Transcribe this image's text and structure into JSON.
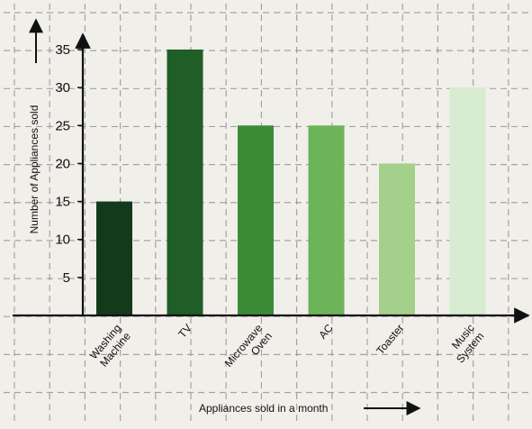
{
  "chart_data": {
    "type": "bar",
    "title": "",
    "xlabel": "Appliances sold in a month",
    "ylabel": "Number of Appliances sold",
    "categories": [
      [
        "Washing",
        "Machine"
      ],
      [
        "TV"
      ],
      [
        "Microwave",
        "Oven"
      ],
      [
        "AC"
      ],
      [
        "Toaster"
      ],
      [
        "Music",
        "System"
      ]
    ],
    "values": [
      15,
      35,
      25,
      25,
      20,
      30
    ],
    "colors": [
      "#123a1b",
      "#1f5e26",
      "#3c8c37",
      "#6db35a",
      "#a5d08c",
      "#d7ecd0"
    ],
    "yticks": [
      5,
      10,
      15,
      20,
      25,
      30,
      35
    ],
    "ylim": [
      0,
      40
    ],
    "grid": true,
    "axis_color": "#111111",
    "grid_color": "#8a8a8a"
  }
}
